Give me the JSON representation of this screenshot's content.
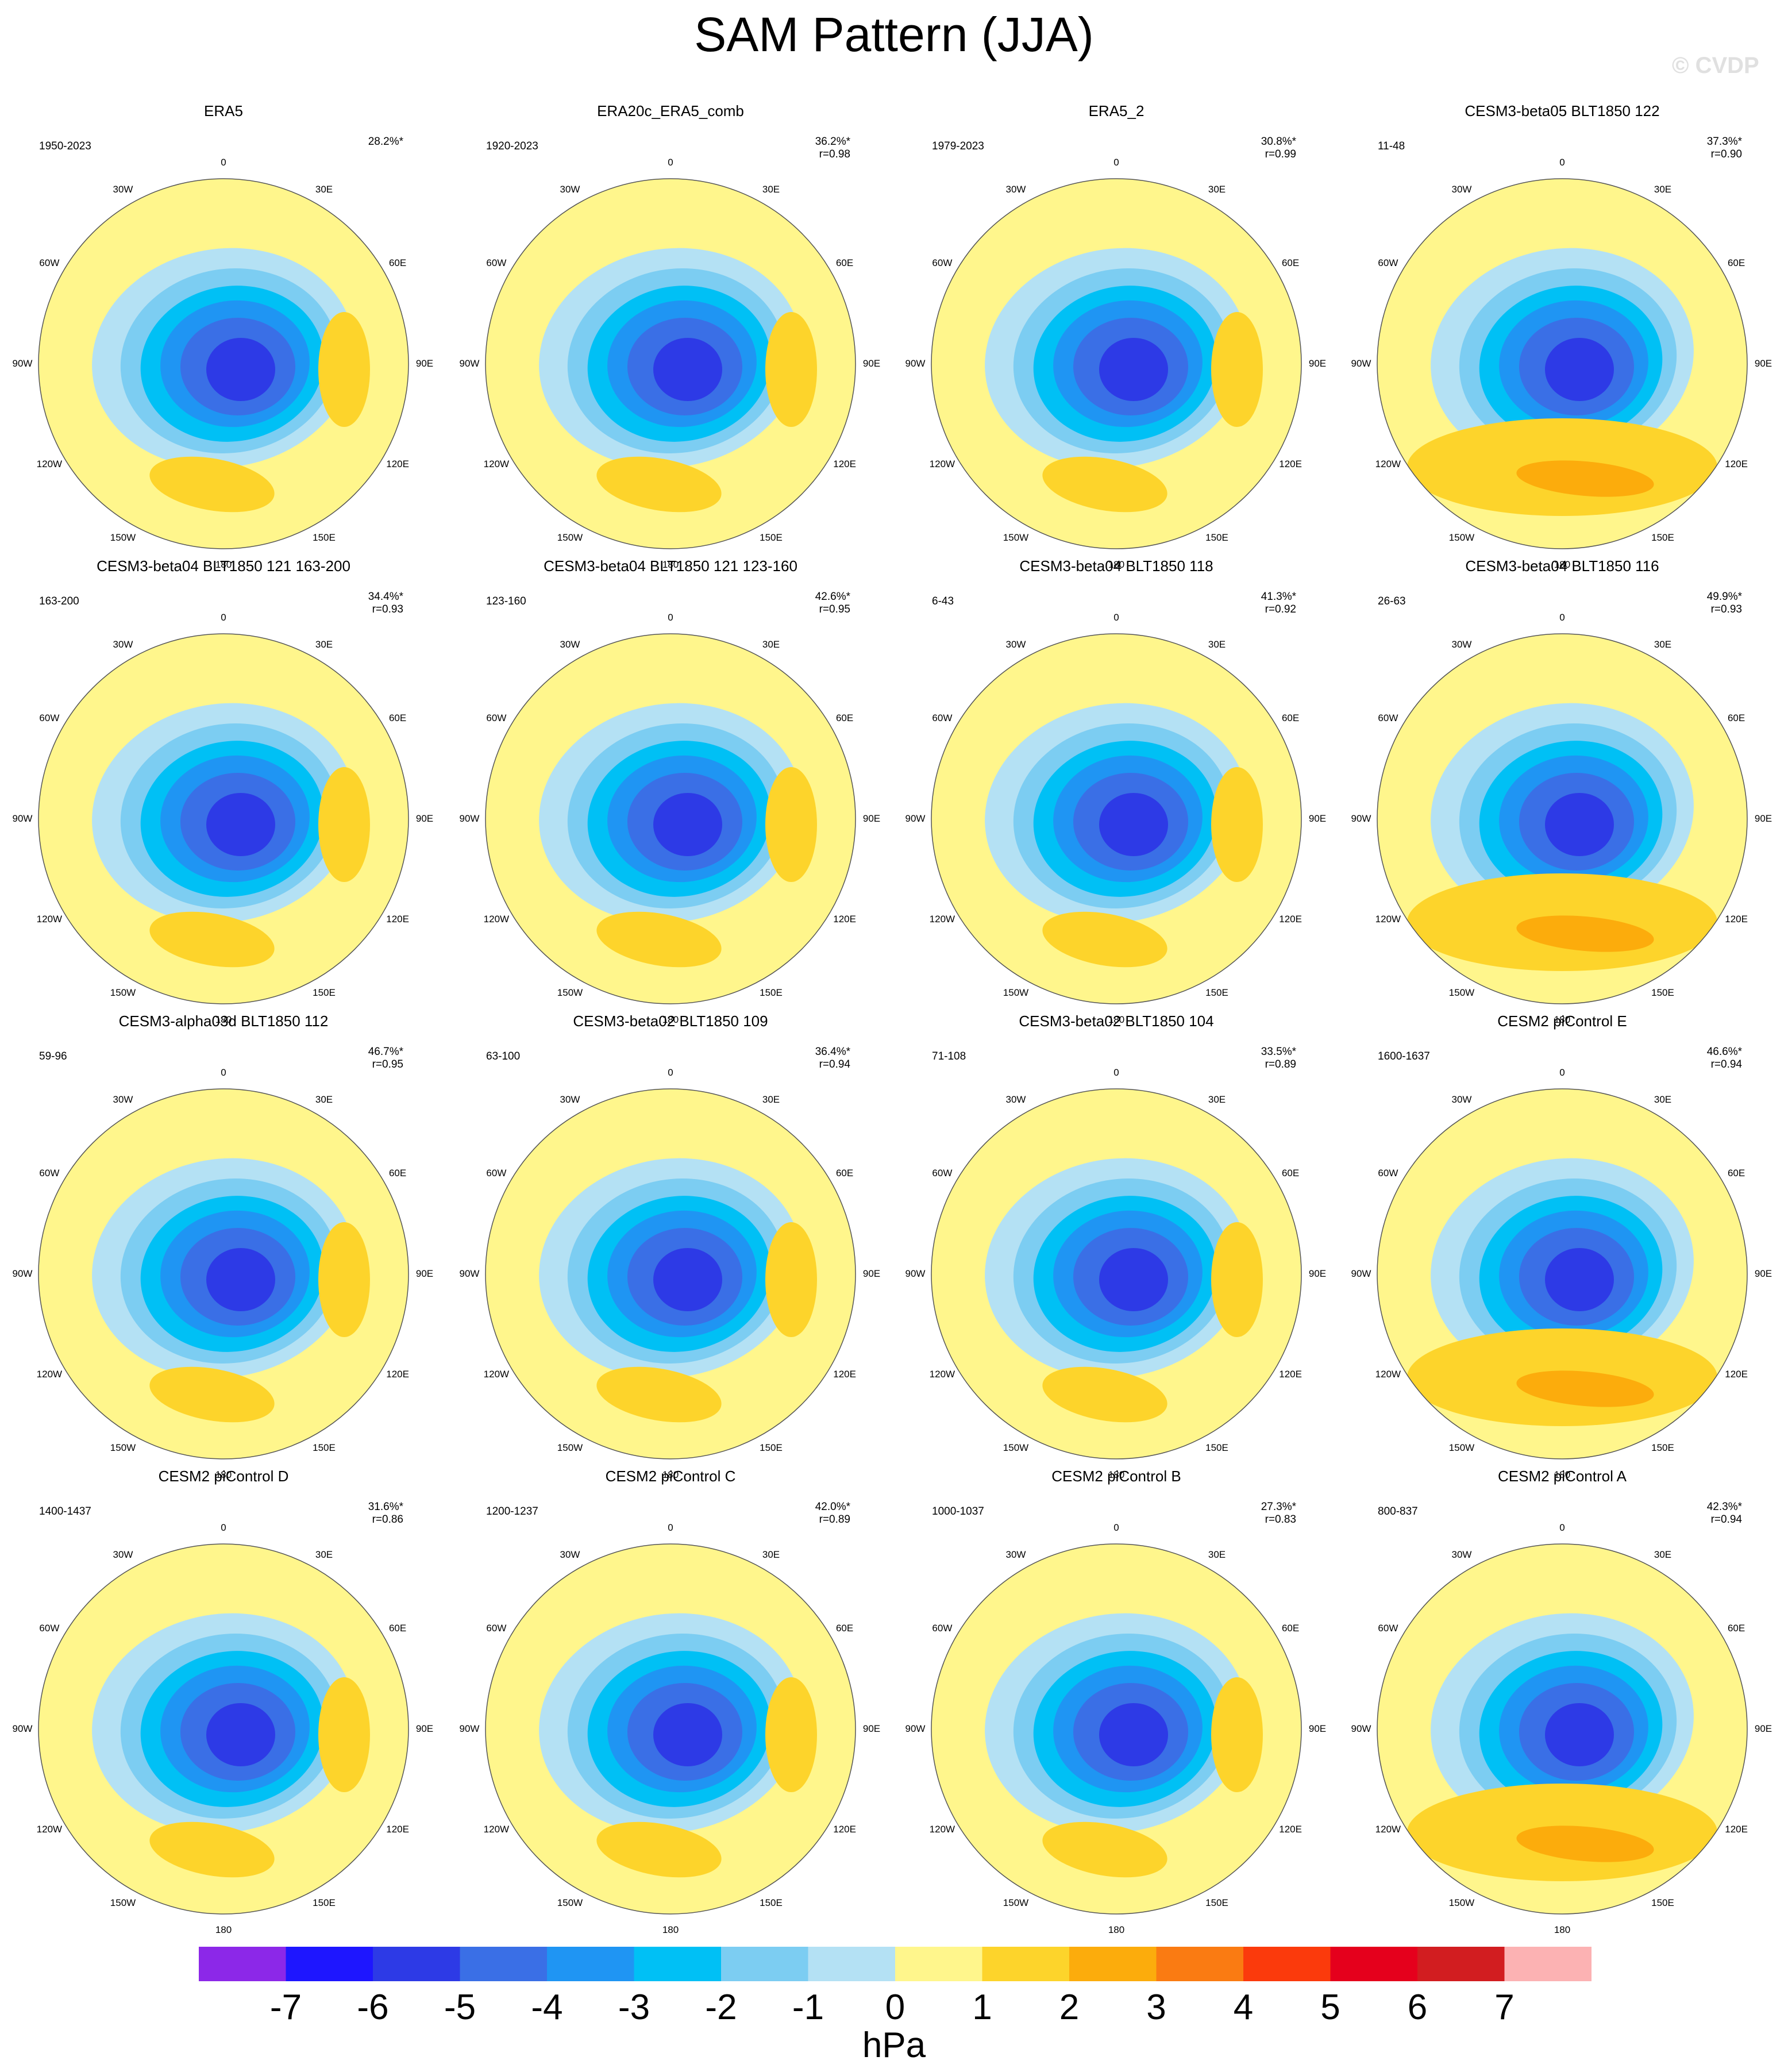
{
  "title": "SAM Pattern (JJA)",
  "watermark": "© CVDP",
  "colorbar": {
    "unit": "hPa",
    "tick_labels": [
      "-7",
      "-6",
      "-5",
      "-4",
      "-3",
      "-2",
      "-1",
      "0",
      "1",
      "2",
      "3",
      "4",
      "5",
      "6",
      "7"
    ],
    "colors": [
      "#8c28e8",
      "#1e16ff",
      "#2d3ae6",
      "#3a6fe6",
      "#1f95f3",
      "#00c0f5",
      "#7ccdf2",
      "#b4e1f4",
      "#fff68c",
      "#fdd42b",
      "#fcac0c",
      "#fa7b12",
      "#fb3a0c",
      "#e5001c",
      "#d21d20",
      "#fcb2b3"
    ]
  },
  "chart_data": {
    "type": "heatmap",
    "projection": "south polar stereographic",
    "longitude_labels": [
      "0",
      "30E",
      "60E",
      "90E",
      "120E",
      "150E",
      "180",
      "150W",
      "120W",
      "90W",
      "60W",
      "30W"
    ],
    "panels": [
      {
        "title": "ERA5",
        "period": "1950-2023",
        "variance": "28.2%*",
        "r": ""
      },
      {
        "title": "ERA20c_ERA5_comb",
        "period": "1920-2023",
        "variance": "36.2%*",
        "r": "r=0.98"
      },
      {
        "title": "ERA5_2",
        "period": "1979-2023",
        "variance": "30.8%*",
        "r": "r=0.99"
      },
      {
        "title": "CESM3-beta05 BLT1850 122",
        "period": "11-48",
        "variance": "37.3%*",
        "r": "r=0.90"
      },
      {
        "title": "CESM3-beta04 BLT1850 121 163-200",
        "period": "163-200",
        "variance": "34.4%*",
        "r": "r=0.93"
      },
      {
        "title": "CESM3-beta04 BLT1850 121 123-160",
        "period": "123-160",
        "variance": "42.6%*",
        "r": "r=0.95"
      },
      {
        "title": "CESM3-beta04 BLT1850 118",
        "period": "6-43",
        "variance": "41.3%*",
        "r": "r=0.92"
      },
      {
        "title": "CESM3-beta04 BLT1850 116",
        "period": "26-63",
        "variance": "49.9%*",
        "r": "r=0.93"
      },
      {
        "title": "CESM3-alpha03d BLT1850 112",
        "period": "59-96",
        "variance": "46.7%*",
        "r": "r=0.95"
      },
      {
        "title": "CESM3-beta02 BLT1850 109",
        "period": "63-100",
        "variance": "36.4%*",
        "r": "r=0.94"
      },
      {
        "title": "CESM3-beta02 BLT1850 104",
        "period": "71-108",
        "variance": "33.5%*",
        "r": "r=0.89"
      },
      {
        "title": "CESM2 piControl E",
        "period": "1600-1637",
        "variance": "46.6%*",
        "r": "r=0.94"
      },
      {
        "title": "CESM2 piControl D",
        "period": "1400-1437",
        "variance": "31.6%*",
        "r": "r=0.86"
      },
      {
        "title": "CESM2 piControl C",
        "period": "1200-1237",
        "variance": "42.0%*",
        "r": "r=0.89"
      },
      {
        "title": "CESM2 piControl B",
        "period": "1000-1037",
        "variance": "27.3%*",
        "r": "r=0.83"
      },
      {
        "title": "CESM2 piControl A",
        "period": "800-837",
        "variance": "42.3%*",
        "r": "r=0.94"
      }
    ]
  }
}
